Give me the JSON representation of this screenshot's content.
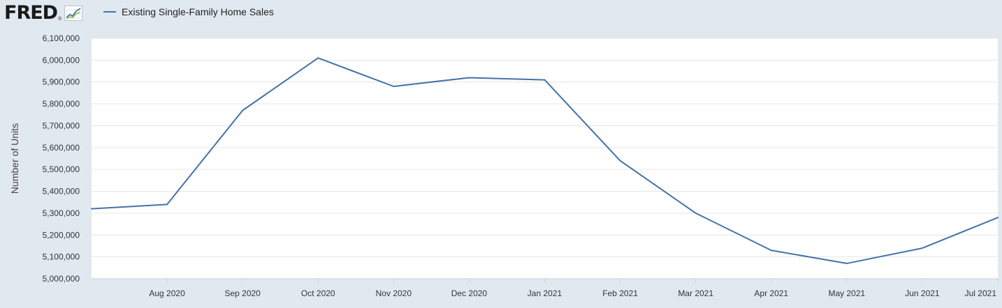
{
  "header": {
    "logo_text": "FRED",
    "logo_reg": "®",
    "logo_icon": "chart-line-icon"
  },
  "colors": {
    "background": "#e1e9f0",
    "plot_background": "#ffffff",
    "gridline": "#e6e6e6",
    "series": "#4572a7"
  },
  "chart_data": {
    "type": "line",
    "title": "",
    "xlabel": "",
    "ylabel": "Number of Units",
    "ylim": [
      5000000,
      6100000
    ],
    "y_ticks": [
      "5,000,000",
      "5,100,000",
      "5,200,000",
      "5,300,000",
      "5,400,000",
      "5,500,000",
      "5,600,000",
      "5,700,000",
      "5,800,000",
      "5,900,000",
      "6,000,000",
      "6,100,000"
    ],
    "categories": [
      "Jul 2020",
      "Aug 2020",
      "Sep 2020",
      "Oct 2020",
      "Nov 2020",
      "Dec 2020",
      "Jan 2021",
      "Feb 2021",
      "Mar 2021",
      "Apr 2021",
      "May 2021",
      "Jun 2021",
      "Jul 2021"
    ],
    "x_tick_labels": [
      "Aug 2020",
      "Sep 2020",
      "Oct 2020",
      "Nov 2020",
      "Dec 2020",
      "Jan 2021",
      "Feb 2021",
      "Mar 2021",
      "Apr 2021",
      "May 2021",
      "Jun 2021",
      "Jul 2021"
    ],
    "grid": true,
    "legend": "top-left",
    "series": [
      {
        "name": "Existing Single-Family Home Sales",
        "values": [
          5320000,
          5340000,
          5770000,
          6010000,
          5880000,
          5920000,
          5910000,
          5540000,
          5300000,
          5130000,
          5070000,
          5140000,
          5280000
        ]
      }
    ]
  }
}
